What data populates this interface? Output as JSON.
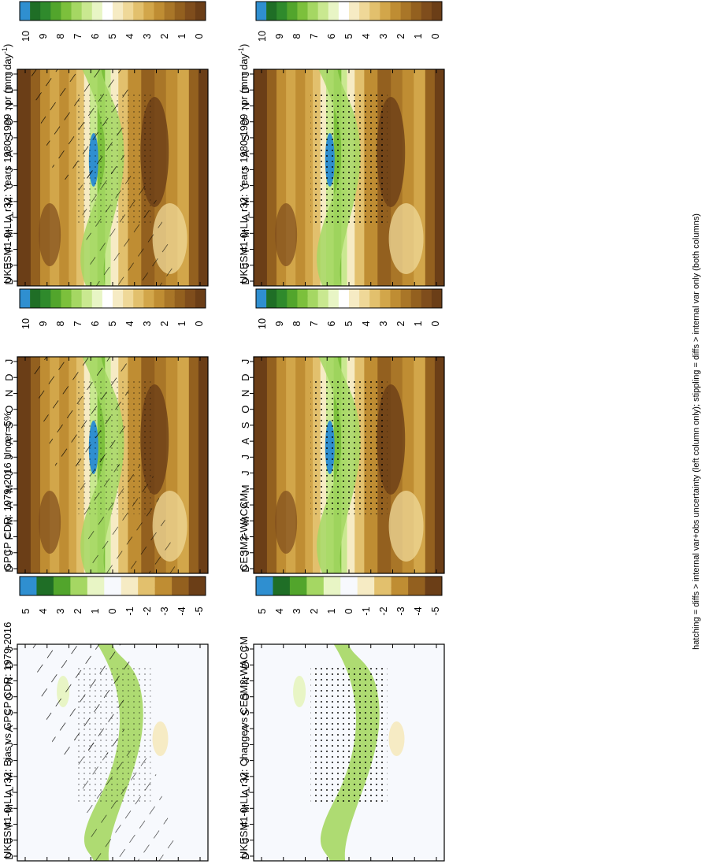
{
  "figure_note": "hatching = diffs > internal var+obs uncertainty (left column only); stippling = diffs > internal var only (both columns)",
  "colors": {
    "abs": [
      "#6b3e17",
      "#7f4d1c",
      "#93601f",
      "#a97628",
      "#bf8d33",
      "#d2a64a",
      "#e2c06d",
      "#efd898",
      "#f6ebc4",
      "#ffffff",
      "#e8f5c5",
      "#c9e890",
      "#a5d763",
      "#7cc03c",
      "#52a52c",
      "#2f8a2c",
      "#1f6e26",
      "#2f8fd0"
    ],
    "diff": [
      "#6b3e17",
      "#93601f",
      "#bf8d33",
      "#e2c06d",
      "#f6ebc4",
      "#f7f9fd",
      "#e8f5c5",
      "#a5d763",
      "#52a52c",
      "#1f6e26",
      "#2f8fd0"
    ]
  },
  "chart_data": [
    {
      "type": "heatmap",
      "id": "p1",
      "title": "UKESM1-0-LL_r32: Years 1980-1999 : pr (mm day",
      "title_sup": "-1",
      "title_end": ")",
      "x_ticks": [
        "D",
        "J",
        "F",
        "M",
        "A",
        "M",
        "J",
        "J",
        "A",
        "S",
        "O",
        "N",
        "D",
        "J"
      ],
      "y_ticks": [
        "80",
        "60",
        "°N",
        "20",
        "0",
        "20",
        "°S",
        "60",
        "80"
      ],
      "cbar_labels": [
        "10",
        "9",
        "8",
        "7",
        "6",
        "5",
        "4",
        "3",
        "2",
        "1",
        "0"
      ],
      "cbar": "abs",
      "overlay": "hatch"
    },
    {
      "type": "heatmap",
      "id": "p2",
      "title": "UKESM1-0-LL_r32: Years 1980-1999 : pr (mm day",
      "title_sup": "-1",
      "title_end": ")",
      "x_ticks": [
        "D",
        "J",
        "F",
        "M",
        "A",
        "M",
        "J",
        "J",
        "A",
        "S",
        "O",
        "N",
        "D",
        "J"
      ],
      "y_ticks": [
        "80",
        "60",
        "°N",
        "20",
        "0",
        "20",
        "°S",
        "60",
        "80"
      ],
      "cbar_labels": [
        "10",
        "9",
        "8",
        "7",
        "6",
        "5",
        "4",
        "3",
        "2",
        "1",
        "0"
      ],
      "cbar": "abs",
      "overlay": "stipple"
    },
    {
      "type": "heatmap",
      "id": "p3",
      "title": "GPCP CDR: 1979-2016 Uncer=5%",
      "title_sup": "",
      "title_end": "",
      "x_ticks": [
        "D",
        "J",
        "F",
        "M",
        "A",
        "M",
        "J",
        "J",
        "A",
        "S",
        "O",
        "N",
        "D",
        "J"
      ],
      "y_ticks": [
        "80",
        "60",
        "°N",
        "20",
        "0",
        "20",
        "°S",
        "60",
        "80"
      ],
      "cbar_labels": [
        "10",
        "9",
        "8",
        "7",
        "6",
        "5",
        "4",
        "3",
        "2",
        "1",
        "0"
      ],
      "cbar": "abs",
      "overlay": "hatch"
    },
    {
      "type": "heatmap",
      "id": "p4",
      "title": "CESM2-WACCM",
      "title_sup": "",
      "title_end": "",
      "x_ticks": [
        "D",
        "J",
        "F",
        "M",
        "A",
        "M",
        "J",
        "J",
        "A",
        "S",
        "O",
        "N",
        "D",
        "J"
      ],
      "y_ticks": [
        "80",
        "60",
        "°N",
        "20",
        "0",
        "20",
        "°S",
        "60",
        "80"
      ],
      "cbar_labels": [
        "10",
        "9",
        "8",
        "7",
        "6",
        "5",
        "4",
        "3",
        "2",
        "1",
        "0"
      ],
      "cbar": "abs",
      "overlay": "stipple"
    },
    {
      "type": "heatmap",
      "id": "p5",
      "title": "UKESM1-0-LL_r32: Bias vs GPCP CDR: 1979-2016",
      "title_sup": "",
      "title_end": "",
      "x_ticks": [
        "D",
        "J",
        "F",
        "M",
        "A",
        "M",
        "J",
        "J",
        "A",
        "S",
        "O",
        "N",
        "D",
        "J"
      ],
      "y_ticks": [
        "80",
        "60",
        "°N",
        "20",
        "0",
        "20",
        "°S",
        "60",
        "80"
      ],
      "cbar_labels": [
        "5",
        "4",
        "3",
        "2",
        "1",
        "0",
        "-1",
        "-2",
        "-3",
        "-4",
        "-5"
      ],
      "cbar": "diff",
      "overlay": "hatch"
    },
    {
      "type": "heatmap",
      "id": "p6",
      "title": "UKESM1-0-LL_r32: Change vs CESM2-WACCM",
      "title_sup": "",
      "title_end": "",
      "x_ticks": [
        "D",
        "J",
        "F",
        "M",
        "A",
        "M",
        "J",
        "J",
        "A",
        "S",
        "O",
        "N",
        "D",
        "J"
      ],
      "y_ticks": [
        "80",
        "60",
        "°N",
        "20",
        "0",
        "20",
        "°S",
        "60",
        "80"
      ],
      "cbar_labels": [
        "5",
        "4",
        "3",
        "2",
        "1",
        "0",
        "-1",
        "-2",
        "-3",
        "-4",
        "-5"
      ],
      "cbar": "diff",
      "overlay": "stipple"
    }
  ]
}
